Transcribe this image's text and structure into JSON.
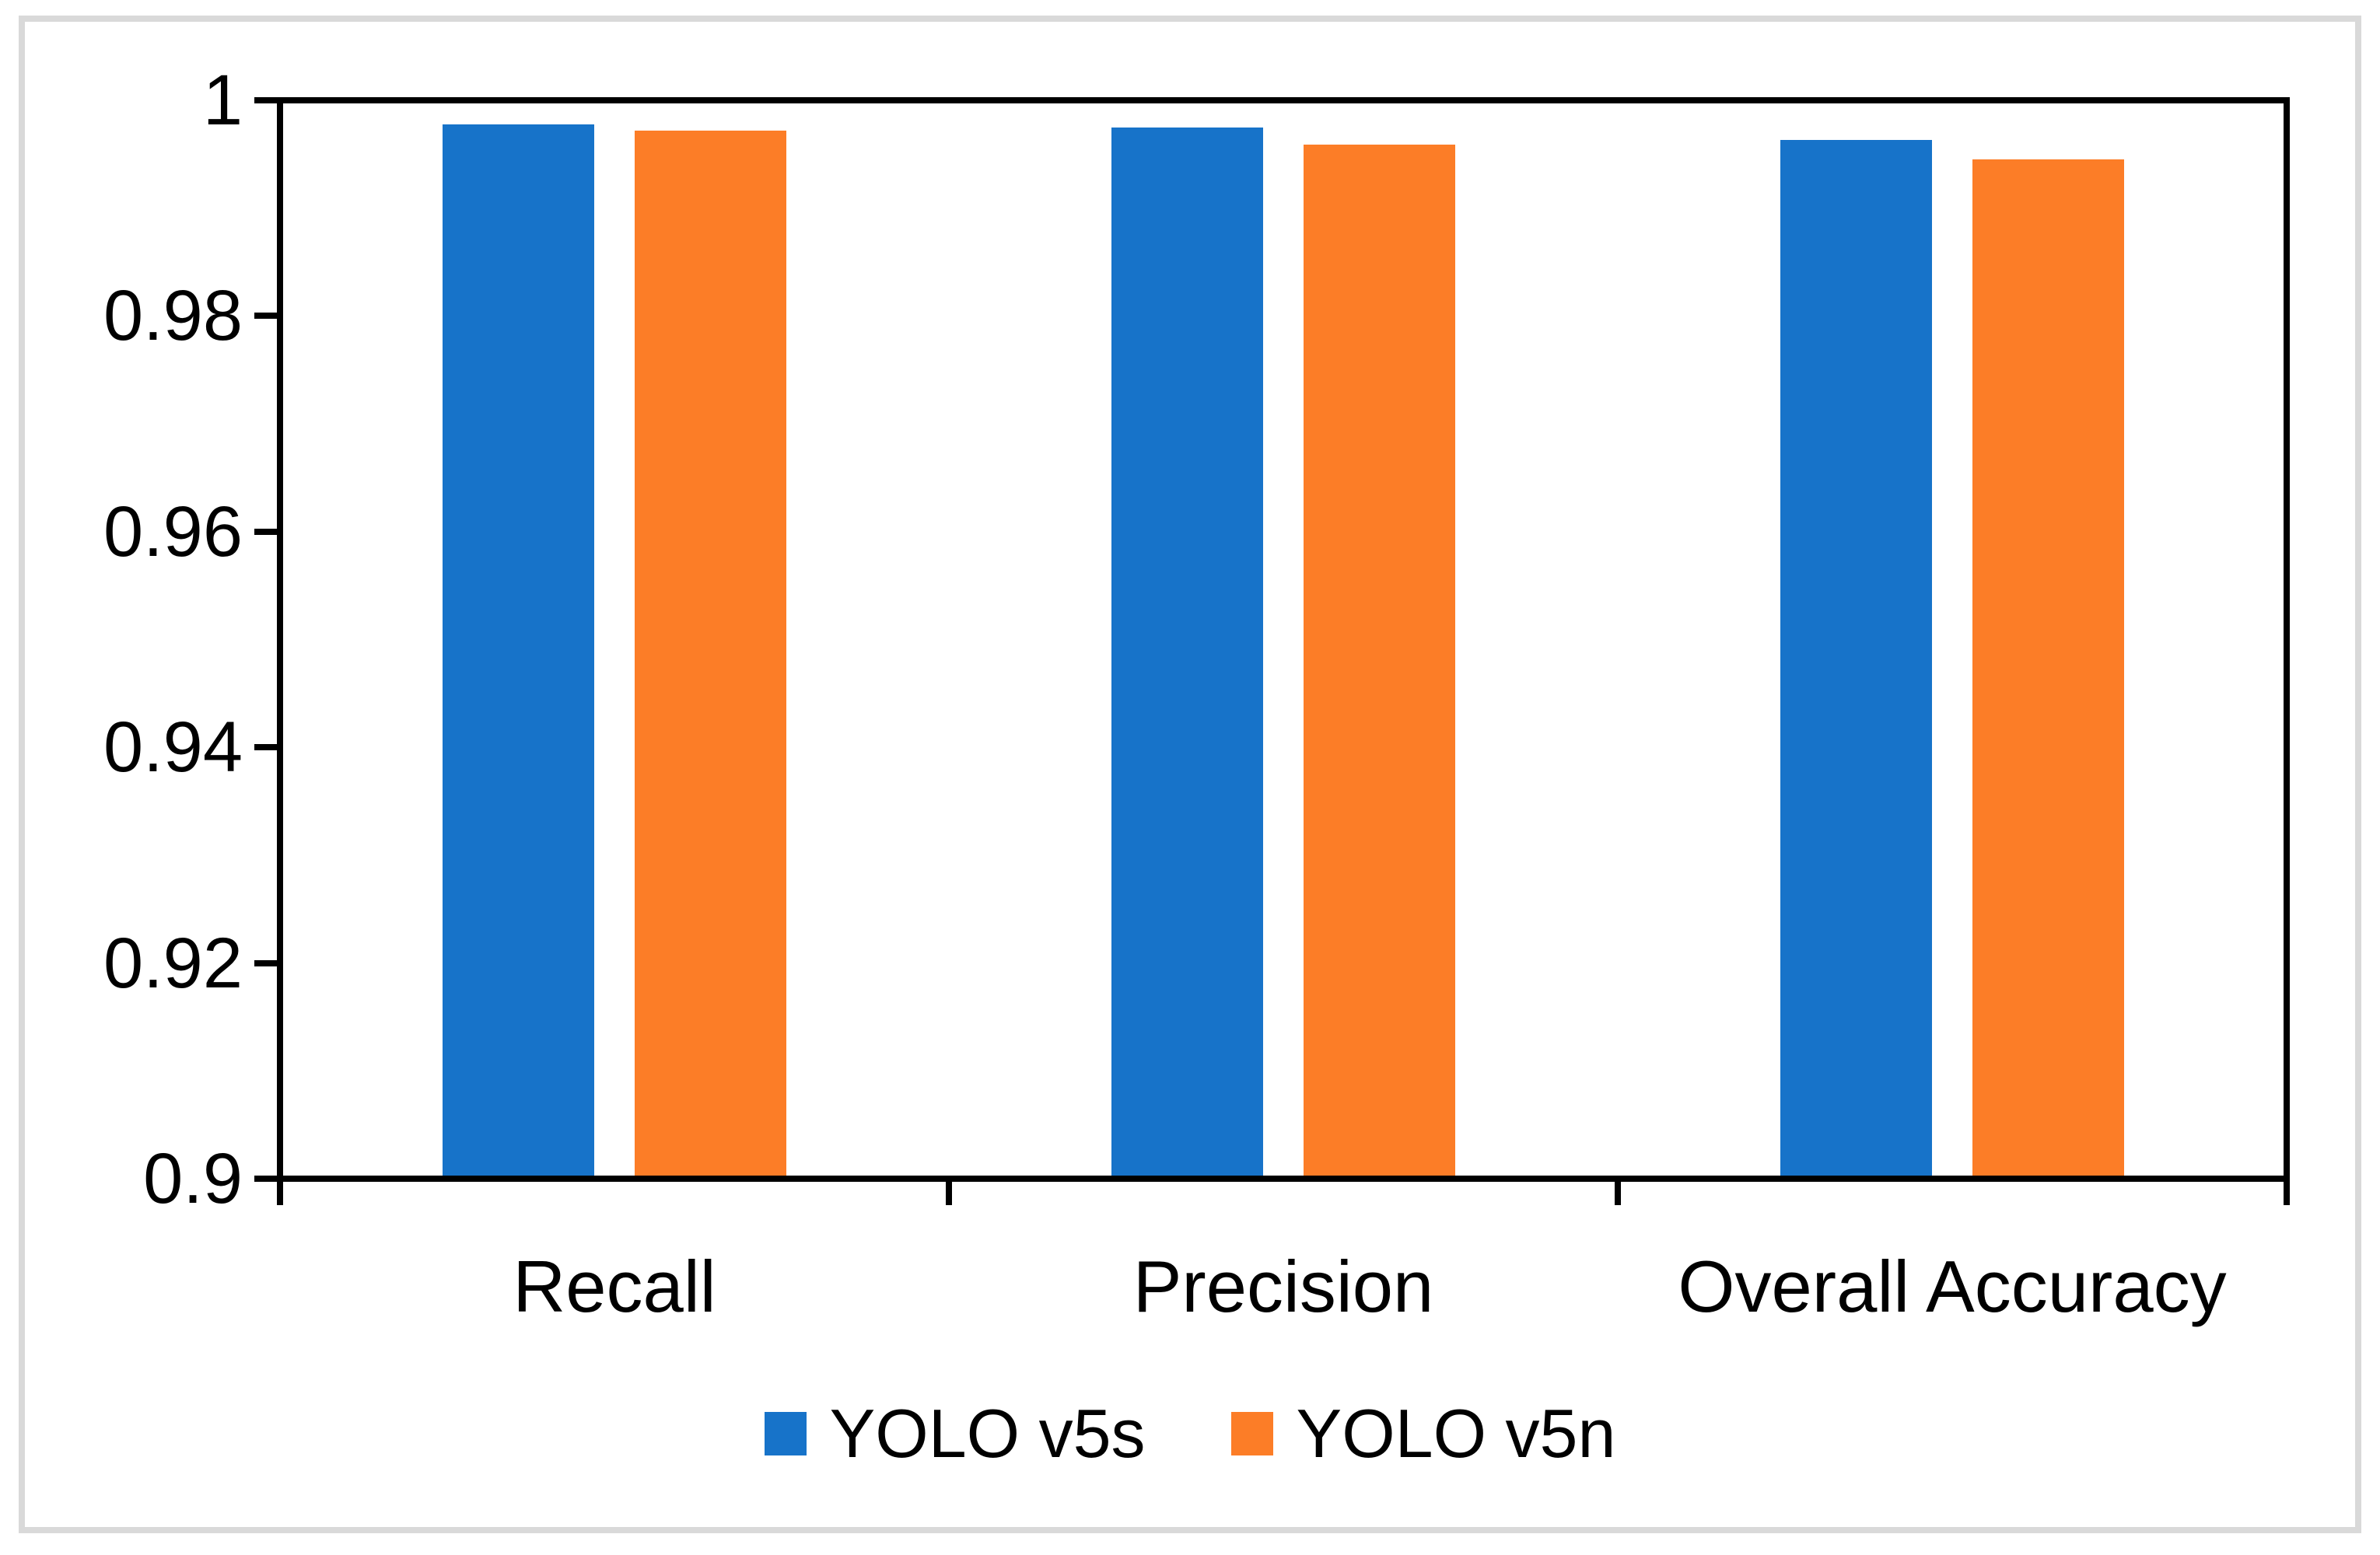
{
  "chart_data": {
    "type": "bar",
    "categories": [
      "Recall",
      "Precision",
      "Overall Accuracy"
    ],
    "series": [
      {
        "name": "YOLO v5s",
        "color": "#1773C9",
        "values": [
          0.9978,
          0.9975,
          0.9963
        ]
      },
      {
        "name": "YOLO v5n",
        "color": "#FC7D27",
        "values": [
          0.9972,
          0.9959,
          0.9945
        ]
      }
    ],
    "title": "",
    "xlabel": "",
    "ylabel": "",
    "ylim": [
      0.9,
      1.0
    ],
    "yticks": {
      "values": [
        1,
        0.98,
        0.96,
        0.94,
        0.92,
        0.9
      ],
      "labels": [
        "1",
        "0.98",
        "0.96",
        "0.94",
        "0.92",
        "0.9"
      ]
    },
    "grid": "off",
    "legend_position": "bottom",
    "axis_color": "#000000",
    "frame_color": "#D9D9D9",
    "plot_border": "full-rectangle"
  }
}
